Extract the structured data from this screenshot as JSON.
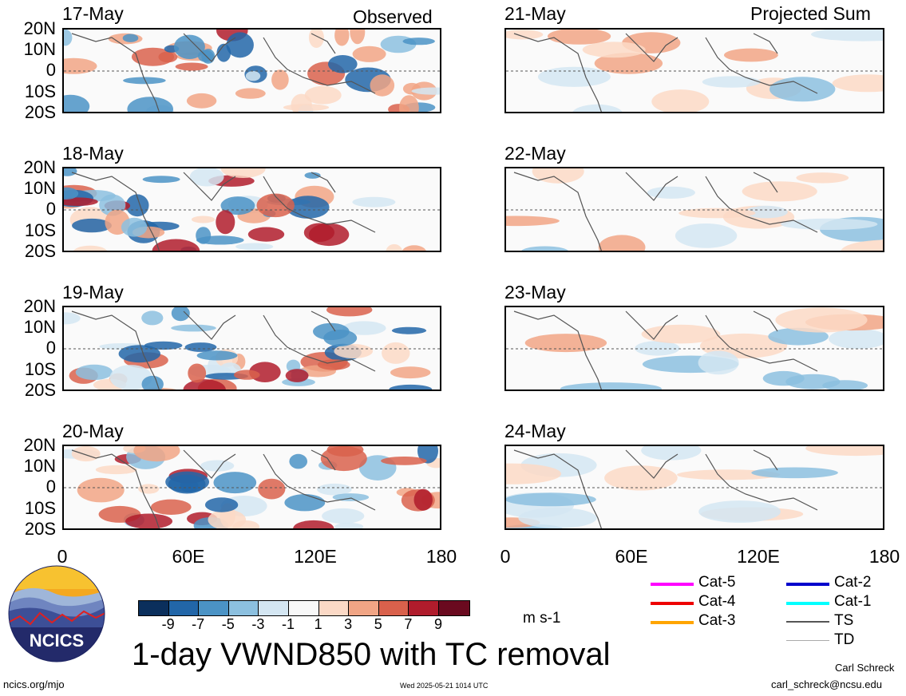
{
  "title": "1-day VWND850 with TC removal",
  "units": "m s-1",
  "left_column": {
    "header": "Observed",
    "dates": [
      "17-May",
      "18-May",
      "19-May",
      "20-May"
    ]
  },
  "right_column": {
    "header": "Projected Sum",
    "dates": [
      "21-May",
      "22-May",
      "23-May",
      "24-May"
    ]
  },
  "lat_labels": [
    "20N",
    "10N",
    "0",
    "10S",
    "20S"
  ],
  "lon_labels": [
    "0",
    "60E",
    "120E",
    "180"
  ],
  "colorbar": {
    "ticks": [
      "-9",
      "-7",
      "-5",
      "-3",
      "-1",
      "1",
      "3",
      "5",
      "7",
      "9"
    ],
    "colors": [
      "#0b2f5c",
      "#2266a8",
      "#4b93c5",
      "#8cc0df",
      "#d4e6f2",
      "#f8f8f8",
      "#fbd9c6",
      "#f1a585",
      "#d9614c",
      "#b01c2c",
      "#6a0a1f"
    ]
  },
  "legend": [
    {
      "label": "Cat-5",
      "color": "#ff00ff"
    },
    {
      "label": "Cat-4",
      "color": "#ee0000"
    },
    {
      "label": "Cat-3",
      "color": "#ffa500"
    },
    {
      "label": "Cat-2",
      "color": "#0000cc"
    },
    {
      "label": "Cat-1",
      "color": "#00ffff"
    },
    {
      "label": "TS",
      "color": "#555555"
    },
    {
      "label": "TD",
      "color": "#aaaaaa"
    }
  ],
  "logo_text": "NCICS",
  "footer": {
    "left": "ncics.org/mjo",
    "center": "Wed 2025-05-21 1014 UTC",
    "author": "Carl Schreck",
    "email": "carl_schreck@ncsu.edu"
  }
}
